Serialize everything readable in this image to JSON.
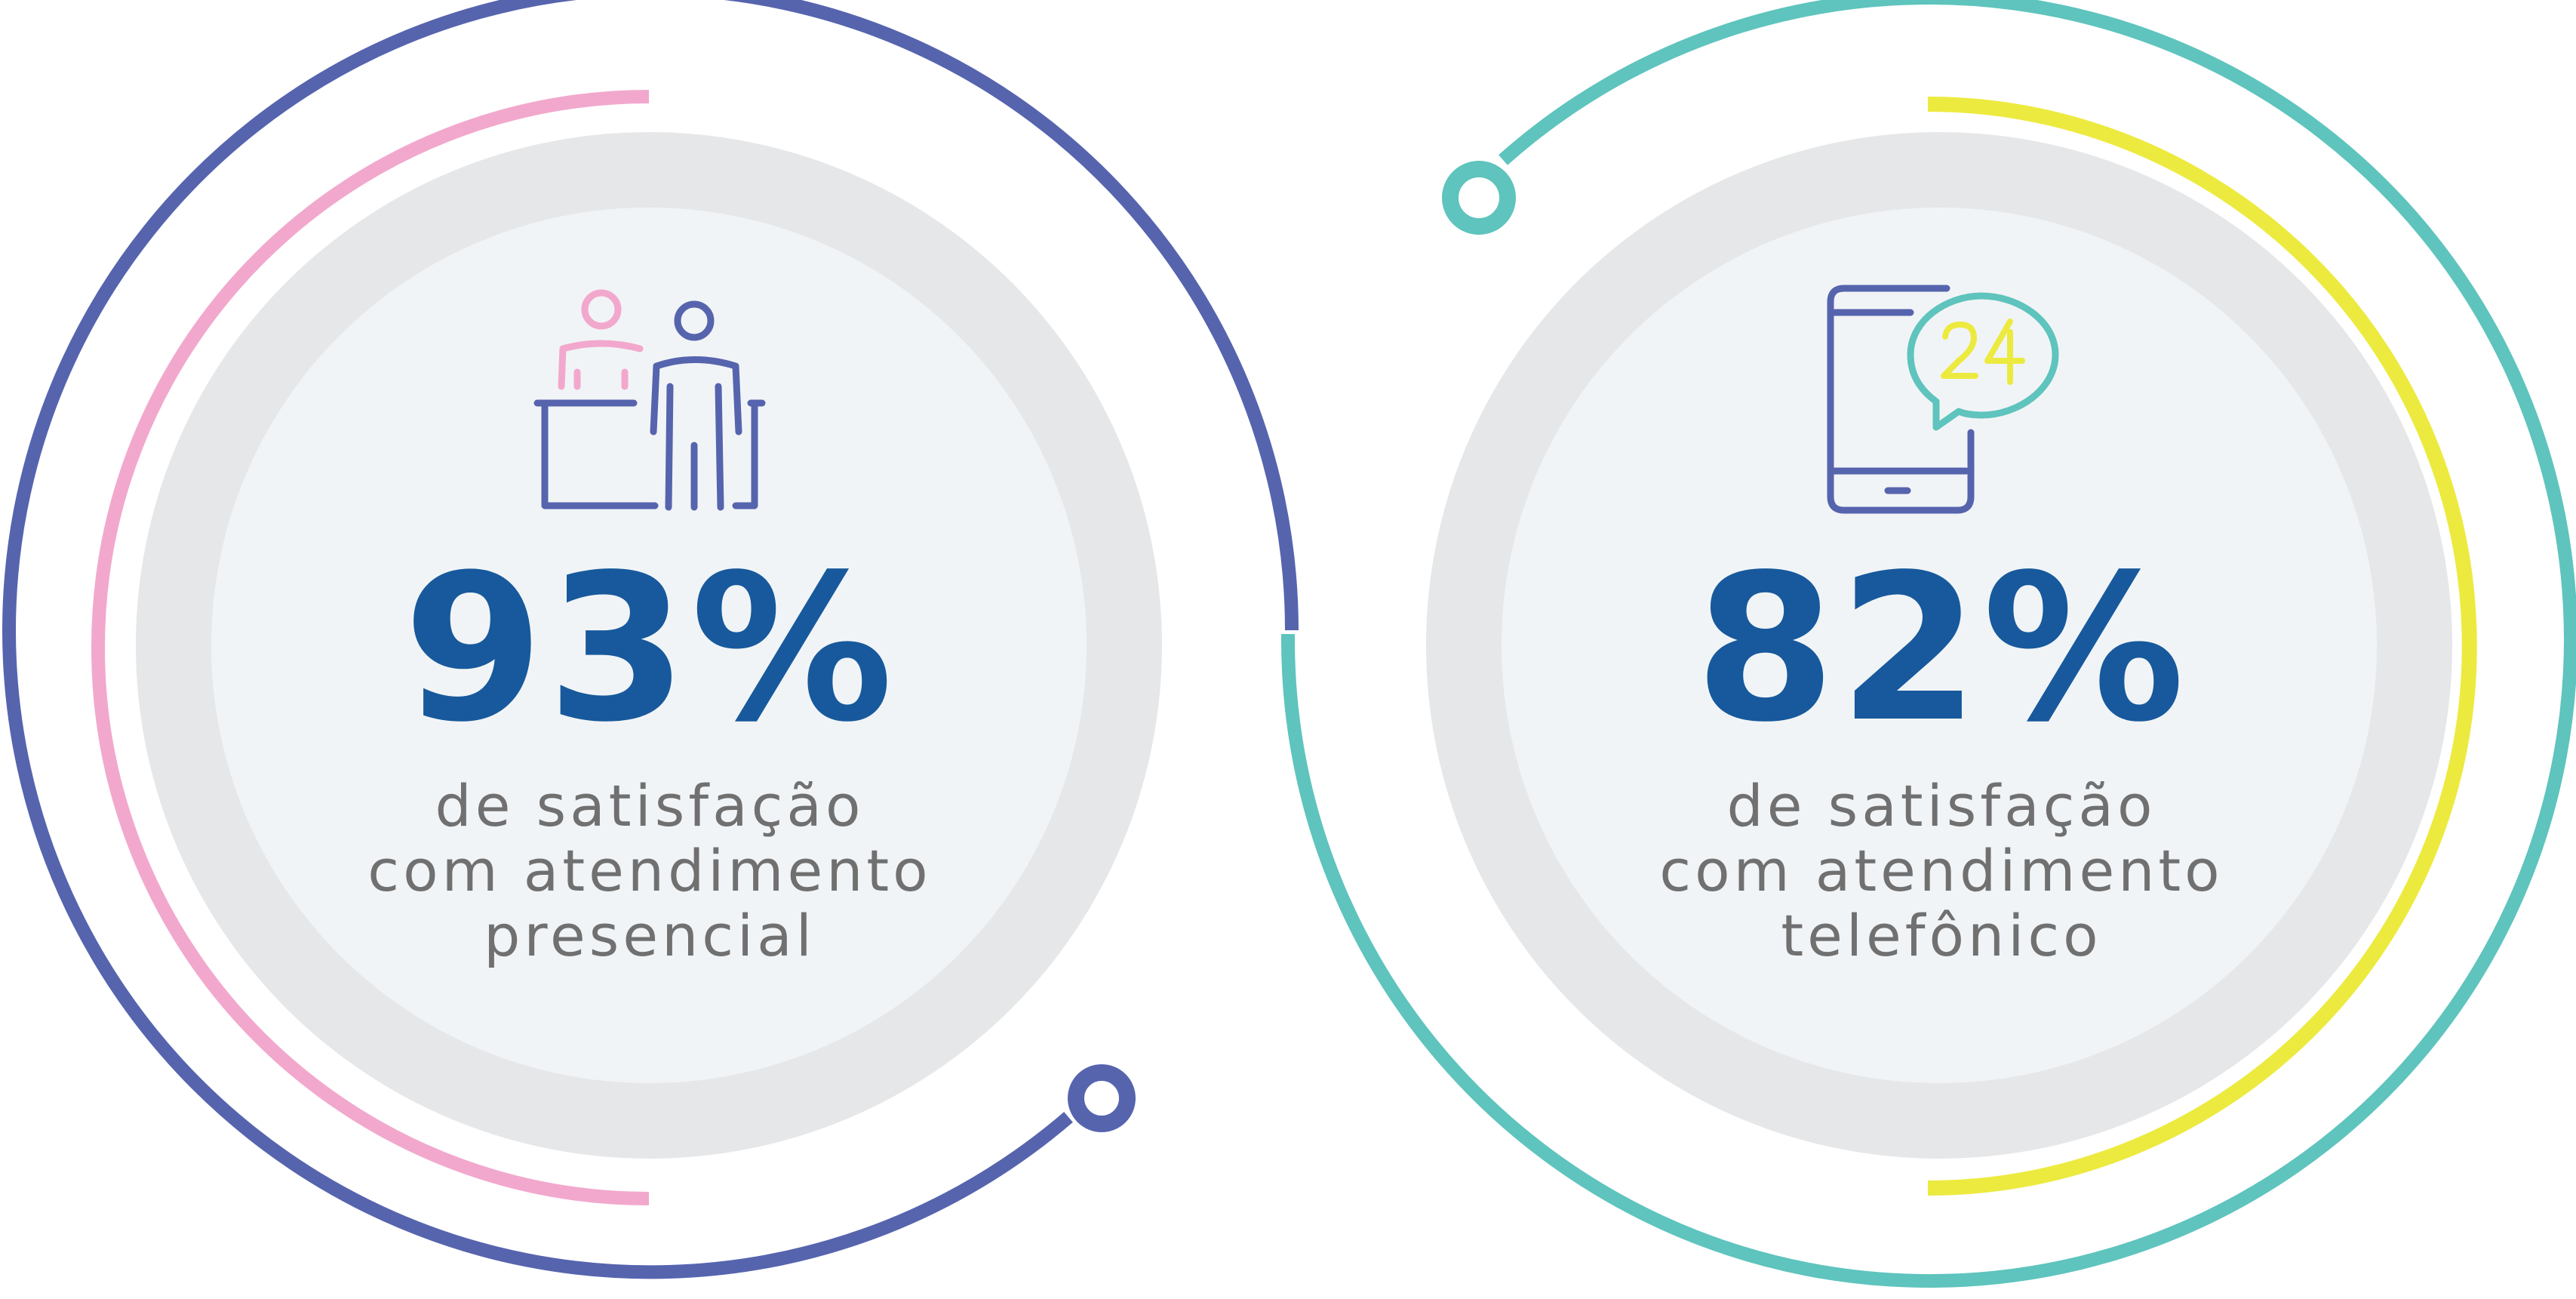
{
  "colors": {
    "outer_ring_left": "#5664ae",
    "accent_arc_left": "#f2a8cd",
    "outer_ring_right": "#5ec4bd",
    "accent_arc_right": "#ecea3f",
    "disc_outer": "#e6e7e9",
    "disc_inner": "#f1f4f6",
    "percent_text": "#17599c",
    "caption_text": "#707071"
  },
  "stats": [
    {
      "percent": "93%",
      "caption_lines": [
        "de satisfação",
        "com atendimento",
        "presencial"
      ],
      "icon": "reception-desk-icon"
    },
    {
      "percent": "82%",
      "caption_lines": [
        "de satisfação",
        "com atendimento",
        "telefônico"
      ],
      "icon": "phone-24h-chat-icon"
    }
  ]
}
